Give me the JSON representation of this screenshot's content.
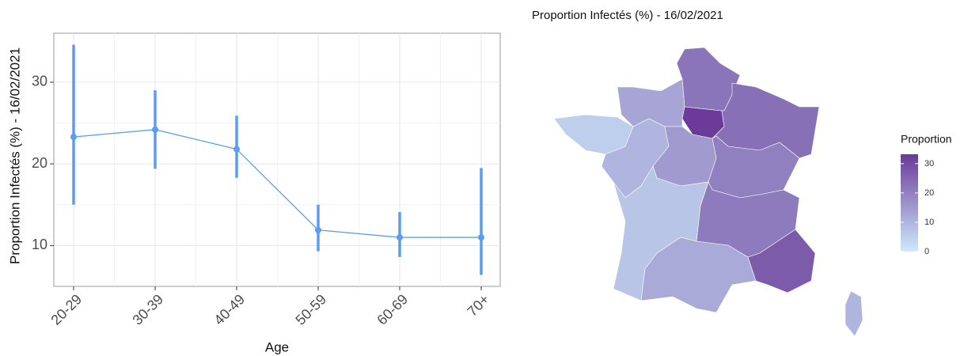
{
  "chart_data": [
    {
      "type": "errorline",
      "y_label": "Proportion Infectés (%) - 16/02/2021",
      "x_label": "Age",
      "categories": [
        "20-29",
        "30-39",
        "40-49",
        "50-59",
        "60-69",
        "70+"
      ],
      "values": [
        23.3,
        24.2,
        21.8,
        11.9,
        11.0,
        11.0
      ],
      "lower": [
        15.0,
        19.4,
        18.3,
        9.3,
        8.6,
        6.4
      ],
      "upper": [
        34.6,
        29.0,
        25.9,
        15.0,
        14.1,
        19.5
      ],
      "color": "#5b9cf5",
      "ylim": [
        5,
        36
      ],
      "yticks": [
        10,
        20,
        30
      ],
      "grid": true
    },
    {
      "type": "map",
      "title": "Proportion Infectés (%) - 16/02/2021",
      "legend_title": "Proportion",
      "categories": [
        null,
        null,
        null,
        null,
        null,
        null,
        null,
        null,
        null,
        null,
        null,
        null,
        null
      ],
      "values": [
        33,
        22,
        23,
        13,
        5,
        10,
        15,
        20,
        21,
        7,
        12,
        27,
        10
      ],
      "low_color": "#cdeafc",
      "high_color": "#6a3a98",
      "clim": [
        0,
        33.2
      ],
      "cticks": [
        0,
        10,
        20,
        30
      ]
    }
  ]
}
